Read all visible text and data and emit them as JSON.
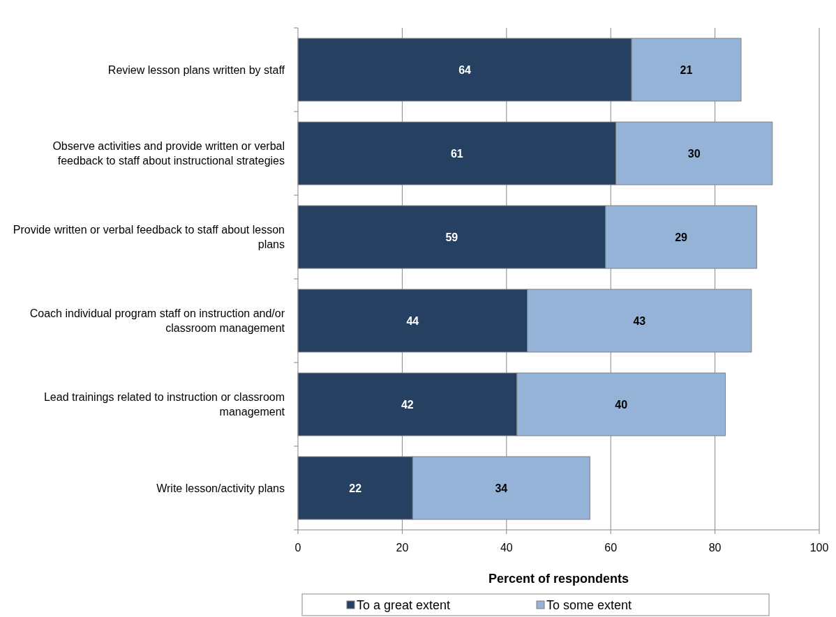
{
  "chart_data": {
    "type": "bar",
    "orientation": "horizontal",
    "stacked": true,
    "categories": [
      "Review lesson plans written by staff",
      "Observe activities and provide written or verbal feedback to staff about instructional strategies",
      "Provide written or verbal feedback to staff about lesson plans",
      "Coach individual program staff on instruction and/or classroom management",
      "Lead trainings related to instruction or classroom management",
      "Write lesson/activity plans"
    ],
    "series": [
      {
        "name": "To a great extent",
        "color": "#264061",
        "values": [
          64,
          61,
          59,
          44,
          42,
          22
        ]
      },
      {
        "name": "To some extent",
        "color": "#95b3d7",
        "values": [
          21,
          30,
          29,
          43,
          40,
          34
        ]
      }
    ],
    "xlim": [
      0,
      100
    ],
    "xticks": [
      0,
      20,
      40,
      60,
      80,
      100
    ],
    "xlabel": "Percent of respondents",
    "grid": "x",
    "legend": "bottom",
    "data_labels": true
  }
}
